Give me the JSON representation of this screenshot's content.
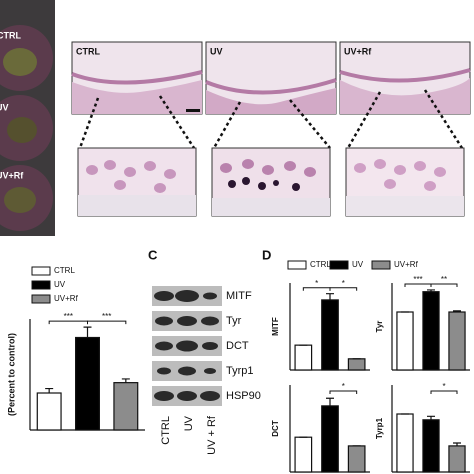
{
  "panels": {
    "c": "C",
    "d": "D"
  },
  "photos": [
    "CTRL",
    "UV",
    "UV+Rf"
  ],
  "histology": [
    "CTRL",
    "UV",
    "UV+Rf"
  ],
  "blot": {
    "rows": [
      "MITF",
      "Tyr",
      "DCT",
      "Tyrp1",
      "HSP90"
    ],
    "lanes": [
      "CTRL",
      "UV",
      "UV + Rf"
    ]
  },
  "legend_d": {
    "names": [
      "CTRL",
      "UV",
      "UV+Rf"
    ],
    "colors": [
      "#ffffff",
      "#000000",
      "#8c8c8c"
    ]
  },
  "chart_data": [
    {
      "type": "bar",
      "ylabel": "(Percent to control)",
      "ylim": [
        0,
        300
      ],
      "series": [
        {
          "name": "CTRL",
          "color": "#ffffff",
          "values": [
            100
          ],
          "errors": [
            12
          ]
        },
        {
          "name": "UV",
          "color": "#000000",
          "values": [
            250
          ],
          "errors": [
            28
          ]
        },
        {
          "name": "UV+Rf",
          "color": "#8c8c8c",
          "values": [
            128
          ],
          "errors": [
            10
          ]
        }
      ],
      "annotations": [
        "***",
        "***"
      ]
    },
    {
      "type": "bar",
      "ylabel": "MITF",
      "ylim": [
        0,
        350
      ],
      "values": [
        100,
        282,
        45
      ],
      "errors": [
        0,
        25,
        0
      ],
      "annotations": [
        "*",
        "*"
      ]
    },
    {
      "type": "bar",
      "ylabel": "Tyr",
      "ylim": [
        0,
        150
      ],
      "values": [
        100,
        135,
        100
      ],
      "errors": [
        0,
        3,
        2
      ],
      "annotations": [
        "***",
        "**"
      ]
    },
    {
      "type": "bar",
      "ylabel": "DCT",
      "ylim": [
        0,
        250
      ],
      "values": [
        100,
        190,
        75
      ],
      "errors": [
        0,
        22,
        0
      ],
      "annotations": [
        "*"
      ]
    },
    {
      "type": "bar",
      "ylabel": "Tyrp1",
      "ylim": [
        0,
        150
      ],
      "values": [
        100,
        90,
        45
      ],
      "errors": [
        0,
        6,
        5
      ],
      "annotations": [
        "*"
      ]
    }
  ]
}
